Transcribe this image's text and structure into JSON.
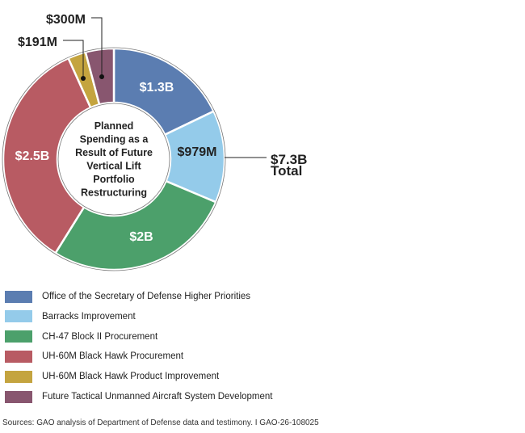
{
  "chart_data": {
    "type": "pie",
    "donut": true,
    "center_label": "Planned Spending as a Result of Future Vertical Lift Portfolio Restructuring",
    "center_lines": [
      "Planned",
      "Spending as a",
      "Result of Future",
      "Vertical Lift",
      "Portfolio",
      "Restructuring"
    ],
    "total_label": "$7.3B",
    "total_word": "Total",
    "legend_position": "bottom",
    "slices": [
      {
        "name": "Office of the Secretary of Defense Higher Priorities",
        "value": 1300,
        "label": "$1.3B",
        "color": "#5b7db1",
        "label_color": "#ffffff"
      },
      {
        "name": "Barracks Improvement",
        "value": 979,
        "label": "$979M",
        "color": "#94cbea",
        "label_color": "#222222"
      },
      {
        "name": "CH-47 Block II Procurement",
        "value": 2000,
        "label": "$2B",
        "color": "#4ca06b",
        "label_color": "#ffffff"
      },
      {
        "name": "UH-60M Black Hawk Procurement",
        "value": 2500,
        "label": "$2.5B",
        "color": "#b85b63",
        "label_color": "#ffffff"
      },
      {
        "name": "UH-60M Black Hawk Product Improvement",
        "value": 191,
        "label": "$191M",
        "color": "#c4a43f",
        "label_color": "#222222"
      },
      {
        "name": "Future Tactical Unmanned Aircraft System Development",
        "value": 300,
        "label": "$300M",
        "color": "#88566f",
        "label_color": "#222222"
      }
    ]
  },
  "source": "Sources: GAO analysis of Department of Defense data and testimony.  I  GAO-26-108025"
}
